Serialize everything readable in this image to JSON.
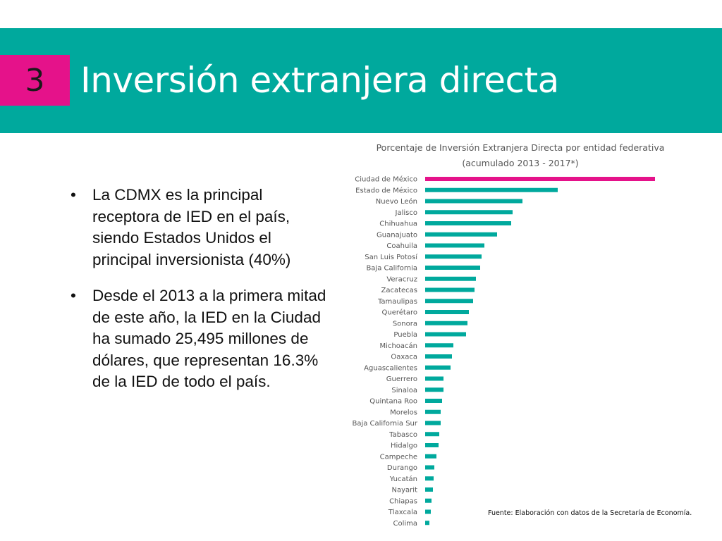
{
  "header": {
    "section_number": "3",
    "title": "Inversión extranjera directa",
    "band_color": "#00a99d",
    "badge_color": "#e5128a"
  },
  "bullets": [
    {
      "marker": "•",
      "text": "La CDMX es la principal receptora de IED en el país, siendo Estados Unidos el principal inversionista (40%)"
    },
    {
      "marker": "•",
      "text": "Desde el 2013 a la primera mitad de este año, la IED en la Ciudad ha sumado 25,495 millones de dólares, que representan 16.3% de la IED de todo el país."
    }
  ],
  "chart_data": {
    "type": "bar",
    "orientation": "horizontal",
    "title": "Porcentaje de Inversión Extranjera Directa por entidad federativa",
    "subtitle": "(acumulado 2013 - 2017*)",
    "categories": [
      "Ciudad de México",
      "Estado de México",
      "Nuevo León",
      "Jalisco",
      "Chihuahua",
      "Guanajuato",
      "Coahuila",
      "San Luis Potosí",
      "Baja California",
      "Veracruz",
      "Zacatecas",
      "Tamaulipas",
      "Querétaro",
      "Sonora",
      "Puebla",
      "Michoacán",
      "Oaxaca",
      "Aguascalientes",
      "Guerrero",
      "Sinaloa",
      "Quintana Roo",
      "Morelos",
      "Baja California Sur",
      "Tabasco",
      "Hidalgo",
      "Campeche",
      "Durango",
      "Yucatán",
      "Nayarit",
      "Chiapas",
      "Tlaxcala",
      "Colima"
    ],
    "values": [
      16.3,
      9.4,
      6.9,
      6.2,
      6.1,
      5.1,
      4.2,
      4.0,
      3.9,
      3.6,
      3.5,
      3.4,
      3.1,
      3.0,
      2.9,
      2.0,
      1.9,
      1.8,
      1.3,
      1.3,
      1.2,
      1.1,
      1.1,
      1.0,
      0.95,
      0.8,
      0.65,
      0.6,
      0.55,
      0.45,
      0.4,
      0.3
    ],
    "highlight_index": 0,
    "bar_color": "#00a99d",
    "highlight_color": "#e5128a",
    "xlim": [
      0,
      16.3
    ],
    "grid": false,
    "legend": "none"
  },
  "source_note": "Fuente: Elaboración con datos de la Secretaría de Economía."
}
